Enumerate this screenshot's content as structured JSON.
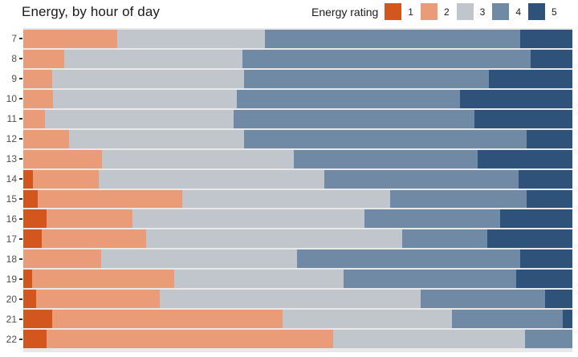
{
  "chart_data": {
    "type": "bar",
    "stacked": true,
    "orientation": "horizontal",
    "title": "Energy, by hour of day",
    "legend_title": "Energy rating",
    "legend_position": "top-right",
    "categories": [
      "7",
      "8",
      "9",
      "10",
      "11",
      "12",
      "13",
      "14",
      "15",
      "16",
      "17",
      "18",
      "19",
      "20",
      "21",
      "22"
    ],
    "xlim": [
      0,
      100
    ],
    "x_tick_labels_visible": false,
    "grid": false,
    "panel_background": "#e8e8e8",
    "series": [
      {
        "name": "1",
        "color": "#d4561f",
        "values": [
          0,
          0,
          0,
          0,
          0,
          0,
          0,
          1.8,
          2.6,
          4.2,
          3.4,
          0,
          1.6,
          2.3,
          5.3,
          4.2
        ]
      },
      {
        "name": "2",
        "color": "#e99c77",
        "values": [
          17.1,
          7.5,
          5.3,
          5.4,
          4.0,
          8.3,
          14.3,
          11.9,
          26.4,
          15.7,
          18.9,
          14.2,
          25.9,
          22.6,
          42.0,
          52.3
        ]
      },
      {
        "name": "3",
        "color": "#c1c6cc",
        "values": [
          26.9,
          32.4,
          34.9,
          33.5,
          34.4,
          31.9,
          34.9,
          41.1,
          37.8,
          42.3,
          46.7,
          35.7,
          30.9,
          47.4,
          30.9,
          34.9
        ]
      },
      {
        "name": "4",
        "color": "#7089a4",
        "values": [
          46.4,
          52.6,
          44.7,
          40.7,
          43.8,
          51.4,
          33.5,
          35.4,
          24.9,
          24.6,
          15.5,
          40.6,
          31.3,
          22.7,
          20.1,
          8.6
        ]
      },
      {
        "name": "5",
        "color": "#2f527b",
        "values": [
          9.5,
          7.6,
          15.2,
          20.4,
          17.9,
          8.3,
          17.3,
          9.8,
          8.3,
          13.2,
          15.5,
          9.5,
          10.3,
          5.0,
          1.8,
          0
        ]
      }
    ]
  }
}
